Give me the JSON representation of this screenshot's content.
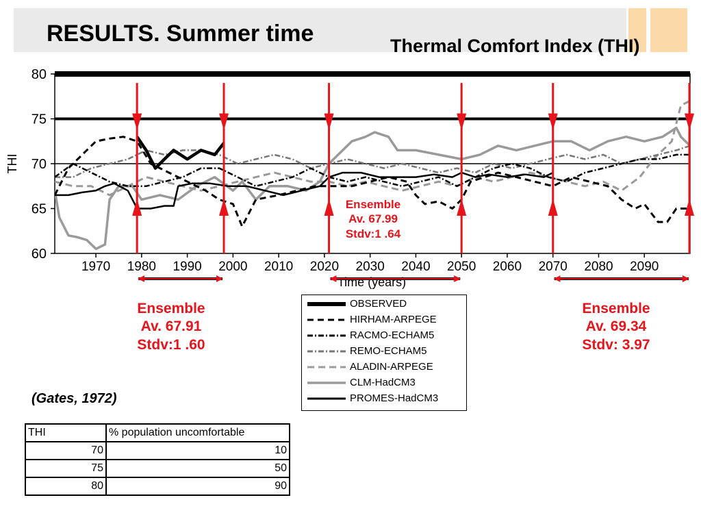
{
  "slide": {
    "title": "RESULTS. Summer time",
    "chart_title": "Thermal Comfort Index (THI)"
  },
  "annotations": [
    {
      "line1": "Ensemble",
      "line2": "Av. 67.99",
      "line3": "Stdv:1 .64"
    },
    {
      "line1": "Ensemble",
      "line2": "Av. 67.91",
      "line3": "Stdv:1 .60"
    },
    {
      "line1": "Ensemble",
      "line2": "Av. 69.34",
      "line3": "Stdv: 3.97"
    }
  ],
  "colors": {
    "accent_red": "#e8141b",
    "deco_orange": "#fcd9a8",
    "title_band": "#eaeaea"
  },
  "chart_data": {
    "type": "line",
    "title": "Thermal Comfort Index (THI)",
    "xlabel": "Time (years)",
    "ylabel": "THI",
    "xlim": [
      1961,
      2100
    ],
    "ylim": [
      60,
      80
    ],
    "xticks": [
      1970,
      1980,
      1990,
      2000,
      2010,
      2020,
      2030,
      2040,
      2050,
      2060,
      2070,
      2080,
      2090
    ],
    "yticks": [
      60,
      65,
      70,
      75,
      80
    ],
    "reference_lines": [
      70,
      75,
      80
    ],
    "periods": [
      {
        "start": 1979,
        "end": 1998
      },
      {
        "start": 2021,
        "end": 2050
      },
      {
        "start": 2070,
        "end": 2100
      }
    ],
    "series": [
      {
        "name": "OBSERVED",
        "style": "thick",
        "points": [
          [
            1979,
            73.0
          ],
          [
            1981,
            71.5
          ],
          [
            1983,
            69.5
          ],
          [
            1985,
            70.5
          ],
          [
            1987,
            71.5
          ],
          [
            1990,
            70.5
          ],
          [
            1993,
            71.5
          ],
          [
            1996,
            71.0
          ],
          [
            1998,
            72.3
          ]
        ]
      },
      {
        "name": "HIRHAM-ARPEGE",
        "style": "dashed",
        "points": [
          [
            1961,
            66.5
          ],
          [
            1964,
            69.5
          ],
          [
            1967,
            71.0
          ],
          [
            1970,
            72.5
          ],
          [
            1973,
            72.8
          ],
          [
            1976,
            73.0
          ],
          [
            1979,
            72.5
          ],
          [
            1982,
            70.0
          ],
          [
            1986,
            69.0
          ],
          [
            1990,
            68.0
          ],
          [
            1994,
            67.0
          ],
          [
            1997,
            66.0
          ],
          [
            2000,
            65.5
          ],
          [
            2002,
            63.0
          ],
          [
            2005,
            66.0
          ],
          [
            2010,
            66.5
          ],
          [
            2014,
            67.0
          ],
          [
            2018,
            67.5
          ],
          [
            2022,
            67.5
          ],
          [
            2026,
            67.5
          ],
          [
            2030,
            68.0
          ],
          [
            2034,
            68.5
          ],
          [
            2038,
            68.0
          ],
          [
            2040,
            66.5
          ],
          [
            2042,
            65.5
          ],
          [
            2045,
            65.8
          ],
          [
            2048,
            65.0
          ],
          [
            2050,
            66.0
          ],
          [
            2052,
            68.0
          ],
          [
            2055,
            68.5
          ],
          [
            2058,
            69.0
          ],
          [
            2062,
            68.5
          ],
          [
            2066,
            68.0
          ],
          [
            2070,
            67.5
          ],
          [
            2074,
            68.5
          ],
          [
            2078,
            68.0
          ],
          [
            2082,
            67.5
          ],
          [
            2085,
            66.0
          ],
          [
            2088,
            65.0
          ],
          [
            2090,
            65.5
          ],
          [
            2093,
            63.5
          ],
          [
            2095,
            63.5
          ],
          [
            2097,
            65.0
          ],
          [
            2100,
            65.0
          ]
        ]
      },
      {
        "name": "RACMO-ECHAM5",
        "style": "dashdot",
        "points": [
          [
            1961,
            68.5
          ],
          [
            1965,
            70.0
          ],
          [
            1969,
            69.0
          ],
          [
            1973,
            68.0
          ],
          [
            1977,
            67.5
          ],
          [
            1981,
            67.5
          ],
          [
            1985,
            68.0
          ],
          [
            1989,
            68.5
          ],
          [
            1993,
            69.5
          ],
          [
            1997,
            69.5
          ],
          [
            2001,
            68.5
          ],
          [
            2005,
            67.5
          ],
          [
            2009,
            68.0
          ],
          [
            2013,
            68.5
          ],
          [
            2017,
            69.5
          ],
          [
            2021,
            68.5
          ],
          [
            2025,
            68.0
          ],
          [
            2029,
            68.5
          ],
          [
            2033,
            68.0
          ],
          [
            2037,
            67.5
          ],
          [
            2041,
            68.0
          ],
          [
            2045,
            68.5
          ],
          [
            2049,
            67.5
          ],
          [
            2053,
            68.5
          ],
          [
            2057,
            69.5
          ],
          [
            2061,
            70.0
          ],
          [
            2065,
            69.5
          ],
          [
            2069,
            68.5
          ],
          [
            2073,
            68.0
          ],
          [
            2077,
            69.0
          ],
          [
            2081,
            69.5
          ],
          [
            2085,
            70.0
          ],
          [
            2089,
            70.5
          ],
          [
            2093,
            70.5
          ],
          [
            2097,
            71.0
          ],
          [
            2100,
            71.0
          ]
        ]
      },
      {
        "name": "REMO-ECHAM5",
        "style": "dashdot-gray",
        "points": [
          [
            1961,
            68.5
          ],
          [
            1965,
            68.5
          ],
          [
            1969,
            69.5
          ],
          [
            1973,
            70.0
          ],
          [
            1977,
            70.5
          ],
          [
            1981,
            71.5
          ],
          [
            1985,
            71.0
          ],
          [
            1989,
            71.5
          ],
          [
            1993,
            71.5
          ],
          [
            1997,
            71.0
          ],
          [
            2001,
            70.0
          ],
          [
            2005,
            70.5
          ],
          [
            2009,
            71.0
          ],
          [
            2013,
            70.5
          ],
          [
            2017,
            69.5
          ],
          [
            2021,
            70.0
          ],
          [
            2025,
            70.5
          ],
          [
            2029,
            70.0
          ],
          [
            2033,
            69.5
          ],
          [
            2037,
            70.0
          ],
          [
            2041,
            69.5
          ],
          [
            2045,
            69.0
          ],
          [
            2049,
            69.5
          ],
          [
            2053,
            69.0
          ],
          [
            2057,
            70.0
          ],
          [
            2061,
            69.5
          ],
          [
            2065,
            70.0
          ],
          [
            2069,
            70.5
          ],
          [
            2073,
            71.0
          ],
          [
            2077,
            70.5
          ],
          [
            2081,
            71.0
          ],
          [
            2085,
            70.0
          ],
          [
            2089,
            70.5
          ],
          [
            2093,
            71.0
          ],
          [
            2097,
            71.5
          ],
          [
            2100,
            72.0
          ]
        ]
      },
      {
        "name": "ALADIN-ARPEGE",
        "style": "dashed-gray",
        "points": [
          [
            1961,
            68.0
          ],
          [
            1965,
            67.5
          ],
          [
            1969,
            67.5
          ],
          [
            1973,
            66.5
          ],
          [
            1977,
            67.5
          ],
          [
            1981,
            68.5
          ],
          [
            1985,
            68.0
          ],
          [
            1989,
            67.5
          ],
          [
            1993,
            67.0
          ],
          [
            1997,
            67.5
          ],
          [
            2001,
            68.0
          ],
          [
            2005,
            68.5
          ],
          [
            2009,
            69.0
          ],
          [
            2013,
            68.5
          ],
          [
            2017,
            68.0
          ],
          [
            2021,
            68.0
          ],
          [
            2025,
            67.5
          ],
          [
            2029,
            68.0
          ],
          [
            2033,
            67.5
          ],
          [
            2037,
            67.0
          ],
          [
            2041,
            67.5
          ],
          [
            2045,
            68.0
          ],
          [
            2049,
            67.5
          ],
          [
            2053,
            68.5
          ],
          [
            2057,
            68.0
          ],
          [
            2061,
            68.5
          ],
          [
            2065,
            69.0
          ],
          [
            2069,
            68.5
          ],
          [
            2073,
            68.0
          ],
          [
            2077,
            67.5
          ],
          [
            2081,
            68.0
          ],
          [
            2085,
            67.0
          ],
          [
            2089,
            68.5
          ],
          [
            2092,
            70.5
          ],
          [
            2094,
            71.5
          ],
          [
            2096,
            72.5
          ],
          [
            2098,
            76.5
          ],
          [
            2100,
            77.0
          ]
        ]
      },
      {
        "name": "CLM-HadCM3",
        "style": "thick-gray",
        "points": [
          [
            1961,
            67.0
          ],
          [
            1962,
            64.0
          ],
          [
            1964,
            62.0
          ],
          [
            1966,
            61.8
          ],
          [
            1968,
            61.5
          ],
          [
            1970,
            60.5
          ],
          [
            1972,
            61.0
          ],
          [
            1973,
            66.0
          ],
          [
            1975,
            67.5
          ],
          [
            1978,
            67.5
          ],
          [
            1980,
            66.0
          ],
          [
            1984,
            66.5
          ],
          [
            1988,
            66.0
          ],
          [
            1992,
            67.5
          ],
          [
            1996,
            68.5
          ],
          [
            2000,
            67.0
          ],
          [
            2002,
            68.0
          ],
          [
            2005,
            66.0
          ],
          [
            2008,
            67.5
          ],
          [
            2012,
            67.5
          ],
          [
            2016,
            67.0
          ],
          [
            2019,
            68.0
          ],
          [
            2021,
            70.0
          ],
          [
            2023,
            71.0
          ],
          [
            2026,
            72.5
          ],
          [
            2029,
            73.0
          ],
          [
            2031,
            73.5
          ],
          [
            2034,
            73.0
          ],
          [
            2036,
            71.5
          ],
          [
            2040,
            71.5
          ],
          [
            2045,
            71.0
          ],
          [
            2050,
            70.5
          ],
          [
            2054,
            71.0
          ],
          [
            2058,
            72.0
          ],
          [
            2062,
            71.5
          ],
          [
            2066,
            72.0
          ],
          [
            2070,
            72.5
          ],
          [
            2074,
            72.5
          ],
          [
            2078,
            71.5
          ],
          [
            2082,
            72.5
          ],
          [
            2086,
            73.0
          ],
          [
            2090,
            72.5
          ],
          [
            2094,
            73.0
          ],
          [
            2097,
            74.0
          ],
          [
            2098,
            73.0
          ],
          [
            2100,
            72.0
          ]
        ]
      },
      {
        "name": "PROMES-HadCM3",
        "style": "solid",
        "points": [
          [
            1961,
            66.5
          ],
          [
            1964,
            66.5
          ],
          [
            1967,
            66.8
          ],
          [
            1970,
            67.0
          ],
          [
            1972,
            67.5
          ],
          [
            1974,
            67.8
          ],
          [
            1977,
            67.0
          ],
          [
            1979,
            65.0
          ],
          [
            1982,
            65.0
          ],
          [
            1985,
            65.3
          ],
          [
            1987,
            65.3
          ],
          [
            1988,
            67.5
          ],
          [
            1991,
            67.8
          ],
          [
            1995,
            67.8
          ],
          [
            1999,
            67.5
          ],
          [
            2003,
            67.5
          ],
          [
            2007,
            67.0
          ],
          [
            2011,
            66.5
          ],
          [
            2015,
            67.0
          ],
          [
            2019,
            67.5
          ],
          [
            2021,
            68.5
          ],
          [
            2024,
            69.0
          ],
          [
            2028,
            69.0
          ],
          [
            2032,
            68.5
          ],
          [
            2036,
            68.5
          ],
          [
            2040,
            68.5
          ],
          [
            2044,
            68.8
          ],
          [
            2048,
            68.5
          ],
          [
            2050,
            69.0
          ],
          [
            2053,
            68.5
          ],
          [
            2056,
            68.8
          ],
          [
            2060,
            68.5
          ],
          [
            2064,
            68.8
          ],
          [
            2068,
            68.5
          ],
          [
            2070,
            69.0
          ]
        ]
      }
    ],
    "legend_position": "bottom-center"
  },
  "table": {
    "headers": [
      "THI",
      "% population uncomfortable"
    ],
    "rows": [
      [
        "70",
        "10"
      ],
      [
        "75",
        "50"
      ],
      [
        "80",
        "90"
      ]
    ]
  },
  "source": "(Gates, 1972)"
}
